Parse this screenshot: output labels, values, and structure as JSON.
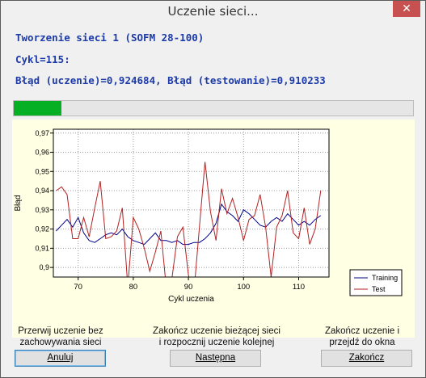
{
  "window": {
    "title": "Uczenie sieci...",
    "close_glyph": "✕"
  },
  "status": {
    "line1": "Tworzenie sieci 1 (SOFM 28-100)",
    "line2": "Cykl=115:",
    "line3": "Błąd (uczenie)=0,924684, Błąd (testowanie)=0,910233"
  },
  "progress": {
    "fraction": 0.12
  },
  "chart_data": {
    "type": "line",
    "xlabel": "Cykl uczenia",
    "ylabel": "Błąd",
    "xlim": [
      65.5,
      115.5
    ],
    "ylim": [
      0.895,
      0.972
    ],
    "xticks": [
      70,
      80,
      90,
      100,
      110
    ],
    "yticks": [
      0.9,
      0.91,
      0.92,
      0.93,
      0.94,
      0.95,
      0.96,
      0.97
    ],
    "ytick_labels": [
      "0,9",
      "0,91",
      "0,92",
      "0,93",
      "0,94",
      "0,95",
      "0,96",
      "0,97"
    ],
    "grid": true,
    "legend_position": "bottom-right",
    "x": [
      66,
      67,
      68,
      69,
      70,
      71,
      72,
      73,
      74,
      75,
      76,
      77,
      78,
      79,
      80,
      81,
      82,
      83,
      84,
      85,
      86,
      87,
      88,
      89,
      90,
      91,
      92,
      93,
      94,
      95,
      96,
      97,
      98,
      99,
      100,
      101,
      102,
      103,
      104,
      105,
      106,
      107,
      108,
      109,
      110,
      111,
      112,
      113,
      114
    ],
    "series": [
      {
        "name": "Training",
        "color": "#00008b",
        "values": [
          0.919,
          0.922,
          0.925,
          0.921,
          0.926,
          0.918,
          0.914,
          0.913,
          0.915,
          0.917,
          0.918,
          0.917,
          0.92,
          0.916,
          0.914,
          0.913,
          0.912,
          0.915,
          0.918,
          0.914,
          0.914,
          0.913,
          0.914,
          0.912,
          0.912,
          0.913,
          0.913,
          0.915,
          0.918,
          0.923,
          0.933,
          0.929,
          0.927,
          0.924,
          0.93,
          0.928,
          0.925,
          0.922,
          0.921,
          0.924,
          0.926,
          0.924,
          0.928,
          0.925,
          0.922,
          0.924,
          0.922,
          0.925,
          0.927
        ]
      },
      {
        "name": "Test",
        "color": "#b22222",
        "values": [
          0.94,
          0.942,
          0.938,
          0.915,
          0.915,
          0.926,
          0.916,
          0.931,
          0.945,
          0.915,
          0.916,
          0.919,
          0.931,
          0.89,
          0.926,
          0.92,
          0.91,
          0.898,
          0.908,
          0.919,
          0.889,
          0.894,
          0.916,
          0.921,
          0.896,
          0.887,
          0.921,
          0.955,
          0.929,
          0.914,
          0.941,
          0.928,
          0.936,
          0.926,
          0.914,
          0.925,
          0.927,
          0.938,
          0.921,
          0.895,
          0.921,
          0.927,
          0.94,
          0.918,
          0.915,
          0.931,
          0.912,
          0.92,
          0.94
        ]
      }
    ]
  },
  "actions": [
    {
      "desc1": "Przerwij uczenie bez",
      "desc2": "zachowywania sieci",
      "label": "Anuluj"
    },
    {
      "desc1": "Zakończ uczenie bieżącej sieci",
      "desc2": "i rozpocznij uczenie kolejnej",
      "label": "Następna"
    },
    {
      "desc1": "Zakończ uczenie i",
      "desc2": "przejdź do okna",
      "label": "Zakończ"
    }
  ]
}
